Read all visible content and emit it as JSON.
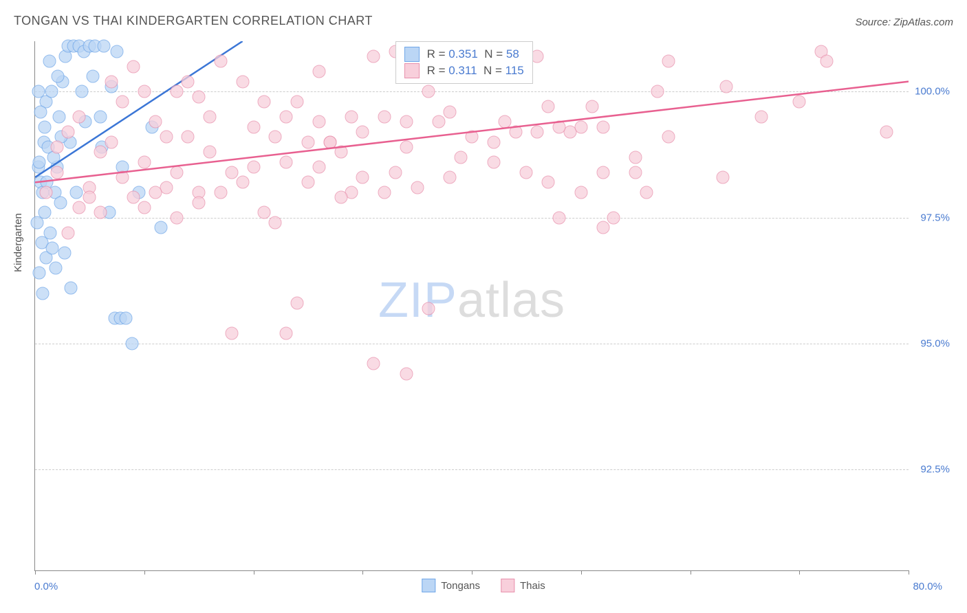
{
  "title": "TONGAN VS THAI KINDERGARTEN CORRELATION CHART",
  "source": "Source: ZipAtlas.com",
  "watermark_zip": "ZIP",
  "watermark_atlas": "atlas",
  "ylabel": "Kindergarten",
  "chart": {
    "type": "scatter",
    "xlim": [
      0,
      80
    ],
    "ylim": [
      90.5,
      101
    ],
    "xlabel_min": "0.0%",
    "xlabel_max": "80.0%",
    "xticks_pct": [
      0,
      10,
      20,
      30,
      40,
      50,
      60,
      70,
      80
    ],
    "yticks": [
      {
        "value": 92.5,
        "label": "92.5%"
      },
      {
        "value": 95.0,
        "label": "95.0%"
      },
      {
        "value": 97.5,
        "label": "97.5%"
      },
      {
        "value": 100.0,
        "label": "100.0%"
      }
    ],
    "grid_color": "#cccccc",
    "background_color": "#ffffff",
    "series": [
      {
        "name": "Tongans",
        "fill": "#bbd6f5",
        "stroke": "#6fa6e8",
        "trend_color": "#3b76d6",
        "trend": {
          "x1": 0,
          "y1": 98.3,
          "x2": 19.0,
          "y2": 101
        },
        "R": "0.351",
        "N": "58",
        "points": [
          [
            0.5,
            98.2
          ],
          [
            0.3,
            98.5
          ],
          [
            0.7,
            98.0
          ],
          [
            0.4,
            98.6
          ],
          [
            0.8,
            99.0
          ],
          [
            1.2,
            98.9
          ],
          [
            1.0,
            99.8
          ],
          [
            1.5,
            100.0
          ],
          [
            0.2,
            97.4
          ],
          [
            0.6,
            97.0
          ],
          [
            0.9,
            97.6
          ],
          [
            1.1,
            98.2
          ],
          [
            1.8,
            98.0
          ],
          [
            2.0,
            98.5
          ],
          [
            2.2,
            99.5
          ],
          [
            2.5,
            100.2
          ],
          [
            1.0,
            96.7
          ],
          [
            0.4,
            96.4
          ],
          [
            2.8,
            100.7
          ],
          [
            3.0,
            100.9
          ],
          [
            3.5,
            100.9
          ],
          [
            4.0,
            100.9
          ],
          [
            4.5,
            100.8
          ],
          [
            5.0,
            100.9
          ],
          [
            5.5,
            100.9
          ],
          [
            6.0,
            99.5
          ],
          [
            2.3,
            97.8
          ],
          [
            1.4,
            97.2
          ],
          [
            1.6,
            96.9
          ],
          [
            0.7,
            96.0
          ],
          [
            3.2,
            99.0
          ],
          [
            3.8,
            98.0
          ],
          [
            4.3,
            100.0
          ],
          [
            5.3,
            100.3
          ],
          [
            6.3,
            100.9
          ],
          [
            6.8,
            97.6
          ],
          [
            7.0,
            100.1
          ],
          [
            7.5,
            100.8
          ],
          [
            8.0,
            98.5
          ],
          [
            9.5,
            98.0
          ],
          [
            10.7,
            99.3
          ],
          [
            11.5,
            97.3
          ],
          [
            7.3,
            95.5
          ],
          [
            7.8,
            95.5
          ],
          [
            8.3,
            95.5
          ],
          [
            8.9,
            95.0
          ],
          [
            3.3,
            96.1
          ],
          [
            1.9,
            96.5
          ],
          [
            2.7,
            96.8
          ],
          [
            0.9,
            99.3
          ],
          [
            0.5,
            99.6
          ],
          [
            0.3,
            100.0
          ],
          [
            2.1,
            100.3
          ],
          [
            1.3,
            100.6
          ],
          [
            1.7,
            98.7
          ],
          [
            2.4,
            99.1
          ],
          [
            4.6,
            99.4
          ],
          [
            6.1,
            98.9
          ]
        ]
      },
      {
        "name": "Thais",
        "fill": "#f8cfdb",
        "stroke": "#e890ac",
        "trend_color": "#e86090",
        "trend": {
          "x1": 0,
          "y1": 98.2,
          "x2": 80,
          "y2": 100.2
        },
        "R": "0.311",
        "N": "115",
        "points": [
          [
            1,
            98.0
          ],
          [
            2,
            98.4
          ],
          [
            3,
            99.2
          ],
          [
            4,
            97.7
          ],
          [
            5,
            98.1
          ],
          [
            6,
            98.8
          ],
          [
            7,
            99.0
          ],
          [
            8,
            98.3
          ],
          [
            9,
            97.9
          ],
          [
            10,
            98.6
          ],
          [
            11,
            99.4
          ],
          [
            12,
            98.1
          ],
          [
            13,
            100.0
          ],
          [
            14,
            99.1
          ],
          [
            15,
            98.0
          ],
          [
            16,
            99.5
          ],
          [
            17,
            100.6
          ],
          [
            18,
            98.4
          ],
          [
            19,
            98.2
          ],
          [
            20,
            99.3
          ],
          [
            21,
            97.6
          ],
          [
            22,
            99.1
          ],
          [
            23,
            98.6
          ],
          [
            24,
            99.8
          ],
          [
            25,
            98.2
          ],
          [
            26,
            100.4
          ],
          [
            27,
            99.0
          ],
          [
            28,
            98.8
          ],
          [
            29,
            98.0
          ],
          [
            30,
            99.2
          ],
          [
            31,
            100.7
          ],
          [
            32,
            99.5
          ],
          [
            33,
            98.4
          ],
          [
            34,
            98.9
          ],
          [
            35,
            98.1
          ],
          [
            36,
            100.0
          ],
          [
            37,
            99.4
          ],
          [
            38,
            98.3
          ],
          [
            39,
            98.7
          ],
          [
            40,
            99.1
          ],
          [
            41,
            100.5
          ],
          [
            42,
            98.6
          ],
          [
            43,
            99.4
          ],
          [
            44,
            100.6
          ],
          [
            45,
            98.4
          ],
          [
            46,
            100.7
          ],
          [
            47,
            98.2
          ],
          [
            48,
            97.5
          ],
          [
            49,
            99.2
          ],
          [
            50,
            98.0
          ],
          [
            51,
            99.7
          ],
          [
            52,
            98.4
          ],
          [
            53,
            97.5
          ],
          [
            33,
            100.8
          ],
          [
            10,
            97.7
          ],
          [
            12,
            99.1
          ],
          [
            13,
            98.4
          ],
          [
            18,
            95.2
          ],
          [
            22,
            97.4
          ],
          [
            24,
            95.8
          ],
          [
            26,
            98.5
          ],
          [
            31,
            94.6
          ],
          [
            32,
            98.0
          ],
          [
            34,
            94.4
          ],
          [
            36,
            95.7
          ],
          [
            20,
            98.5
          ],
          [
            42,
            99.0
          ],
          [
            44,
            99.2
          ],
          [
            46,
            99.2
          ],
          [
            48,
            99.3
          ],
          [
            50,
            99.3
          ],
          [
            52,
            99.3
          ],
          [
            55,
            98.7
          ],
          [
            56,
            98.0
          ],
          [
            58,
            100.6
          ],
          [
            47,
            99.7
          ],
          [
            23,
            95.2
          ],
          [
            26,
            99.4
          ],
          [
            5,
            97.9
          ],
          [
            6,
            97.6
          ],
          [
            8,
            99.8
          ],
          [
            9,
            100.5
          ],
          [
            10,
            100.0
          ],
          [
            14,
            100.2
          ],
          [
            15,
            97.8
          ],
          [
            17,
            98.0
          ],
          [
            19,
            100.2
          ],
          [
            21,
            99.8
          ],
          [
            2,
            98.9
          ],
          [
            3,
            97.2
          ],
          [
            4,
            99.5
          ],
          [
            30,
            98.3
          ],
          [
            29,
            99.5
          ],
          [
            28,
            97.9
          ],
          [
            7,
            100.2
          ],
          [
            52,
            97.3
          ],
          [
            55,
            98.4
          ],
          [
            57,
            100.0
          ],
          [
            58,
            99.1
          ],
          [
            34,
            99.4
          ],
          [
            38,
            99.6
          ],
          [
            63,
            98.3
          ],
          [
            63.3,
            100.1
          ],
          [
            66.5,
            99.5
          ],
          [
            70,
            99.8
          ],
          [
            72,
            100.8
          ],
          [
            72.5,
            100.6
          ],
          [
            78,
            99.2
          ],
          [
            13,
            97.5
          ],
          [
            15,
            99.9
          ],
          [
            16,
            98.8
          ],
          [
            23,
            99.5
          ],
          [
            25,
            99.0
          ],
          [
            11,
            98.0
          ],
          [
            27,
            99.0
          ]
        ]
      }
    ]
  },
  "legend_bottom": [
    {
      "label": "Tongans",
      "fill": "#bbd6f5",
      "stroke": "#6fa6e8"
    },
    {
      "label": "Thais",
      "fill": "#f8cfdb",
      "stroke": "#e890ac"
    }
  ]
}
